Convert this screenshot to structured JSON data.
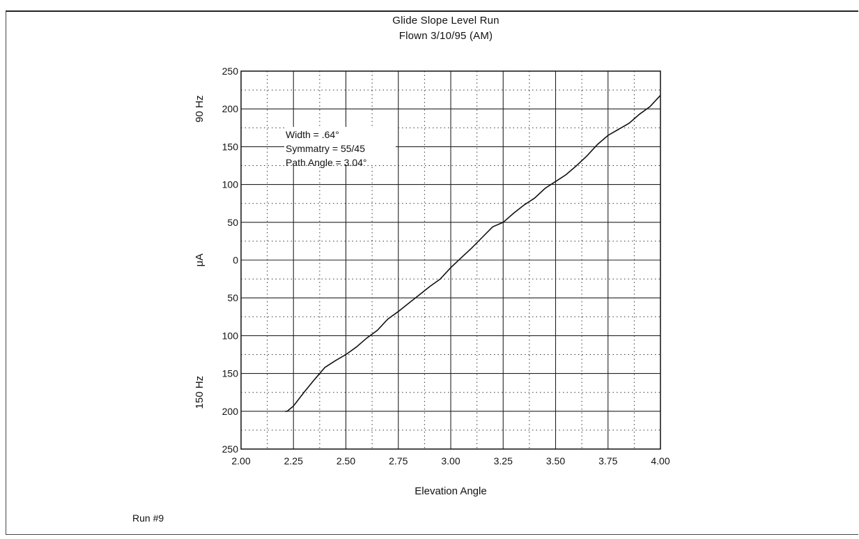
{
  "chart_data": {
    "type": "line",
    "title": "Glide Slope Level Run",
    "subtitle": "Flown 3/10/95 (AM)",
    "xlabel": "Elevation Angle",
    "ylabel": "μA",
    "ylabel_top": "90 Hz",
    "ylabel_bottom": "150 Hz",
    "xlim": [
      2.0,
      4.0
    ],
    "ylim": [
      -250,
      250
    ],
    "x_ticks": [
      2.0,
      2.25,
      2.5,
      2.75,
      3.0,
      3.25,
      3.5,
      3.75,
      4.0
    ],
    "x_tick_labels": [
      "2.00",
      "2.25",
      "2.50",
      "2.75",
      "3.00",
      "3.25",
      "3.50",
      "3.75",
      "4.00"
    ],
    "y_ticks": [
      250,
      200,
      150,
      100,
      50,
      0,
      -50,
      -100,
      -150,
      -200,
      -250
    ],
    "y_tick_labels": [
      "250",
      "200",
      "150",
      "100",
      "50",
      "0",
      "50",
      "100",
      "150",
      "200",
      "250"
    ],
    "grid": true,
    "annotations": [
      "Width = .64°",
      "Symmatry = 55/45",
      "Path Angle = 3.04°"
    ],
    "series": [
      {
        "x": [
          2.22,
          2.25,
          2.3,
          2.35,
          2.4,
          2.45,
          2.5,
          2.55,
          2.6,
          2.65,
          2.7,
          2.75,
          2.8,
          2.85,
          2.9,
          2.95,
          3.0,
          3.05,
          3.1,
          3.15,
          3.2,
          3.25,
          3.3,
          3.35,
          3.4,
          3.45,
          3.5,
          3.55,
          3.6,
          3.65,
          3.7,
          3.75,
          3.8,
          3.85,
          3.9,
          3.95,
          4.0
        ],
        "y": [
          -200,
          -193,
          -175,
          -158,
          -142,
          -133,
          -125,
          -115,
          -103,
          -93,
          -78,
          -68,
          -57,
          -46,
          -35,
          -25,
          -10,
          3,
          16,
          30,
          44,
          50,
          62,
          73,
          82,
          95,
          104,
          113,
          125,
          138,
          153,
          165,
          173,
          181,
          193,
          203,
          218
        ]
      }
    ]
  },
  "footer": "Run #9"
}
